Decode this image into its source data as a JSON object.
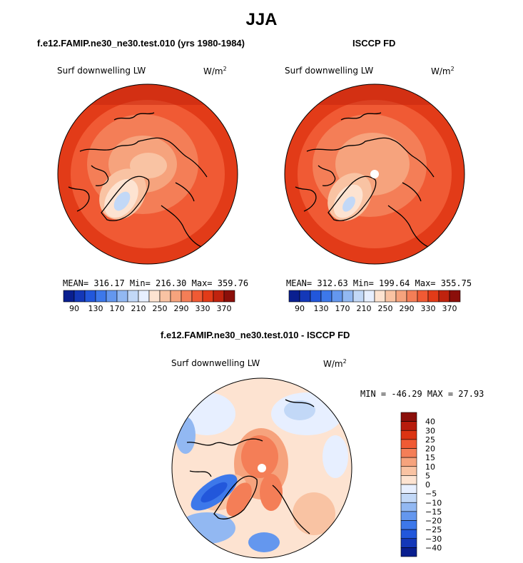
{
  "main_title": "JJA",
  "panels": [
    {
      "title": "f.e12.FAMIP.ne30_ne30.test.010 (yrs 1980-1984)",
      "variable": "Surf downwelling LW",
      "units": "W/m",
      "units_exp": "2",
      "stats": "MEAN= 316.17  Min= 216.30  Max= 359.76"
    },
    {
      "title": "ISCCP FD",
      "variable": "Surf downwelling LW",
      "units": "W/m",
      "units_exp": "2",
      "stats": "MEAN= 312.63  Min= 199.64  Max= 355.75"
    },
    {
      "title": "f.e12.FAMIP.ne30_ne30.test.010 - ISCCP FD",
      "variable": "Surf downwelling LW",
      "units": "W/m",
      "units_exp": "2",
      "stats": "MIN = -46.29 MAX =  27.93"
    }
  ],
  "chart_data": [
    {
      "type": "heatmap",
      "projection": "north polar stereographic",
      "title": "f.e12.FAMIP.ne30_ne30.test.010 (yrs 1980-1984)",
      "variable": "Surf downwelling LW",
      "units": "W/m2",
      "mean": 316.17,
      "min": 216.3,
      "max": 359.76,
      "colorbar": {
        "orientation": "horizontal",
        "tick_labels": [
          "90",
          "130",
          "170",
          "210",
          "250",
          "290",
          "330",
          "370"
        ],
        "colors": [
          "#0a1f8f",
          "#1438b8",
          "#2257db",
          "#3d78ea",
          "#6497ee",
          "#92b8f2",
          "#c2d8f7",
          "#e7efff",
          "#fde3d1",
          "#f9c3a3",
          "#f6a37d",
          "#f47e57",
          "#f05a34",
          "#e23b18",
          "#c0230e",
          "#8b0f0a"
        ]
      }
    },
    {
      "type": "heatmap",
      "projection": "north polar stereographic",
      "title": "ISCCP FD",
      "variable": "Surf downwelling LW",
      "units": "W/m2",
      "mean": 312.63,
      "min": 199.64,
      "max": 355.75,
      "colorbar": {
        "orientation": "horizontal",
        "tick_labels": [
          "90",
          "130",
          "170",
          "210",
          "250",
          "290",
          "330",
          "370"
        ],
        "colors": [
          "#0a1f8f",
          "#1438b8",
          "#2257db",
          "#3d78ea",
          "#6497ee",
          "#92b8f2",
          "#c2d8f7",
          "#e7efff",
          "#fde3d1",
          "#f9c3a3",
          "#f6a37d",
          "#f47e57",
          "#f05a34",
          "#e23b18",
          "#c0230e",
          "#8b0f0a"
        ]
      }
    },
    {
      "type": "heatmap",
      "projection": "north polar stereographic",
      "title": "f.e12.FAMIP.ne30_ne30.test.010 - ISCCP FD",
      "variable": "Surf downwelling LW",
      "units": "W/m2",
      "min": -46.29,
      "max": 27.93,
      "colorbar": {
        "orientation": "vertical",
        "tick_labels": [
          "40",
          "30",
          "25",
          "20",
          "15",
          "10",
          "5",
          "0",
          "−5",
          "−10",
          "−15",
          "−20",
          "−25",
          "−30",
          "−40"
        ],
        "colors": [
          "#8b0f0a",
          "#b71c0c",
          "#dc3412",
          "#f05a34",
          "#f47e57",
          "#f6a37d",
          "#f9c3a3",
          "#fde3d1",
          "#e7efff",
          "#c2d8f7",
          "#92b8f2",
          "#6497ee",
          "#3d78ea",
          "#2257db",
          "#1438b8",
          "#0a1f8f"
        ]
      }
    }
  ]
}
